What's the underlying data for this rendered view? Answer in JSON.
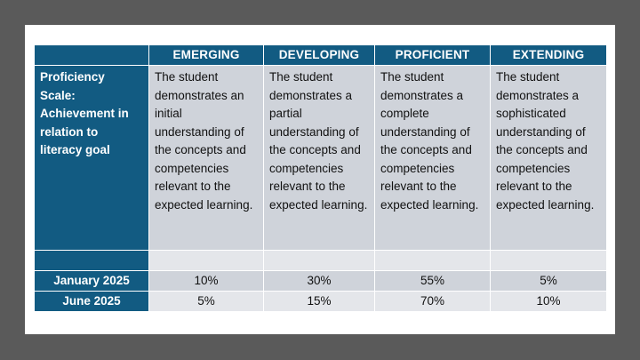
{
  "table": {
    "headers": [
      "EMERGING",
      "DEVELOPING",
      "PROFICIENT",
      "EXTENDING"
    ],
    "scale_label": "Proficiency Scale: Achievement in relation to literacy goal",
    "descriptions": [
      "The student demonstrates an initial understanding of the concepts and competencies relevant to the expected learning.",
      "The student demonstrates a partial understanding of the concepts and competencies relevant to the expected learning.",
      "The student demonstrates a complete understanding of the concepts and competencies relevant to the expected learning.",
      "The student demonstrates a sophisticated understanding of the concepts and competencies relevant to the expected learning."
    ],
    "rows": [
      {
        "label": "January 2025",
        "values": [
          "10%",
          "30%",
          "55%",
          "5%"
        ]
      },
      {
        "label": "June 2025",
        "values": [
          "5%",
          "15%",
          "70%",
          "10%"
        ]
      }
    ]
  },
  "colors": {
    "header_bg": "#125b82",
    "cell_dark": "#cfd3da",
    "cell_light": "#e4e6ea",
    "frame": "#5a5a5a"
  }
}
